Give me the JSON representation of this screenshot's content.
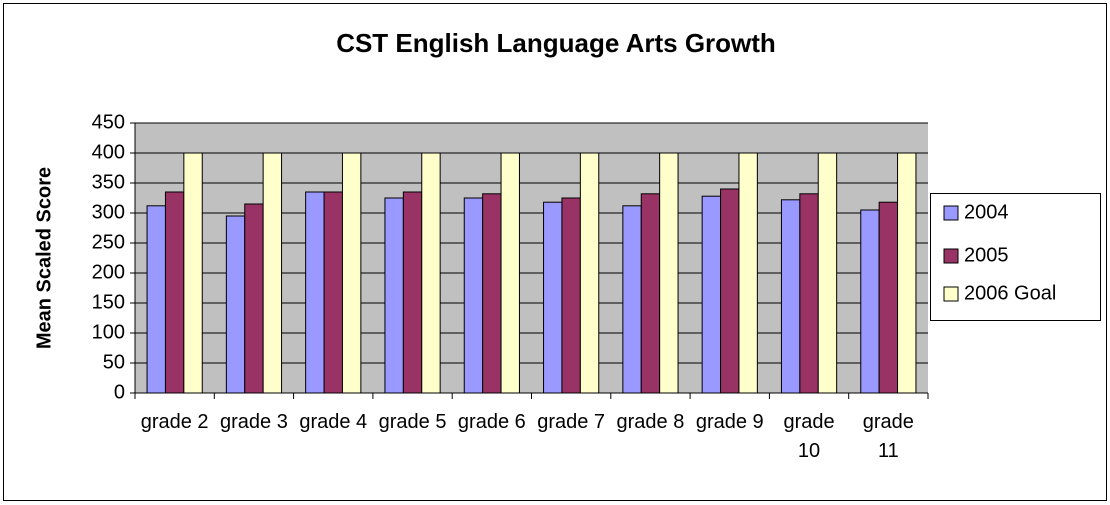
{
  "chart_data": {
    "type": "bar",
    "title": "CST English Language Arts Growth",
    "y_label": "Mean Scaled Score",
    "categories": [
      "grade 2",
      "grade 3",
      "grade 4",
      "grade 5",
      "grade 6",
      "grade 7",
      "grade 8",
      "grade 9",
      "grade 10",
      "grade 11"
    ],
    "series": [
      {
        "name": "2004",
        "color": "#9999ff",
        "values": [
          312,
          295,
          335,
          325,
          325,
          318,
          312,
          328,
          322,
          305
        ]
      },
      {
        "name": "2005",
        "color": "#993366",
        "values": [
          335,
          315,
          335,
          335,
          332,
          325,
          332,
          340,
          332,
          318
        ]
      },
      {
        "name": "2006 Goal",
        "color": "#ffffcc",
        "values": [
          400,
          400,
          400,
          400,
          400,
          400,
          400,
          400,
          400,
          400
        ]
      }
    ],
    "ylim": [
      0,
      450
    ],
    "yticks": [
      0,
      50,
      100,
      150,
      200,
      250,
      300,
      350,
      400,
      450
    ],
    "grid": true,
    "legend": "right"
  }
}
